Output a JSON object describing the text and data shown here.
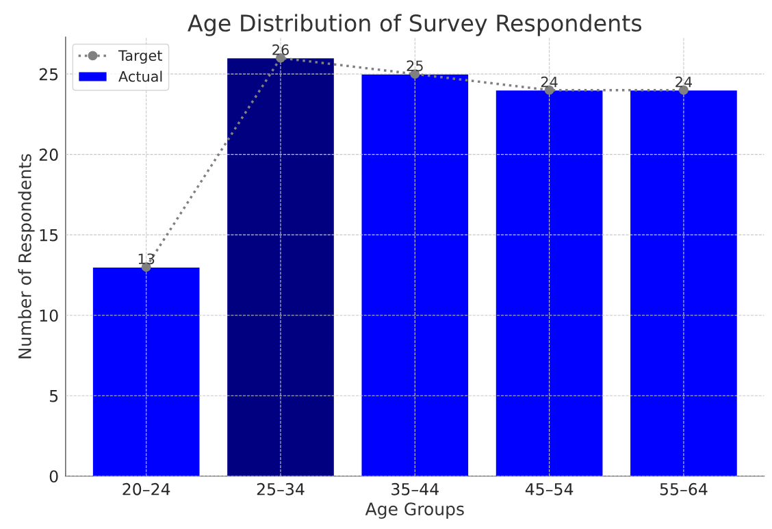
{
  "chart_data": {
    "type": "bar",
    "title": "Age Distribution of Survey Respondents",
    "xlabel": "Age Groups",
    "ylabel": "Number of Respondents",
    "categories": [
      "20–24",
      "25–34",
      "35–44",
      "45–54",
      "55–64"
    ],
    "series": [
      {
        "name": "Actual",
        "colors": [
          "#0000ff",
          "#000080",
          "#0000ff",
          "#0000ff",
          "#0000ff"
        ],
        "values": [
          13,
          26,
          25,
          24,
          24
        ]
      },
      {
        "name": "Target",
        "type": "line",
        "color": "#808080",
        "marker": "circle",
        "line_style": "dotted",
        "values": [
          13,
          26,
          25,
          24,
          24
        ],
        "value_labels": [
          "13",
          "26",
          "25",
          "24",
          "24"
        ]
      }
    ],
    "ylim": [
      0,
      27.3
    ],
    "yticks": [
      0,
      5,
      10,
      15,
      20,
      25
    ],
    "grid": true,
    "legend": "top left"
  }
}
